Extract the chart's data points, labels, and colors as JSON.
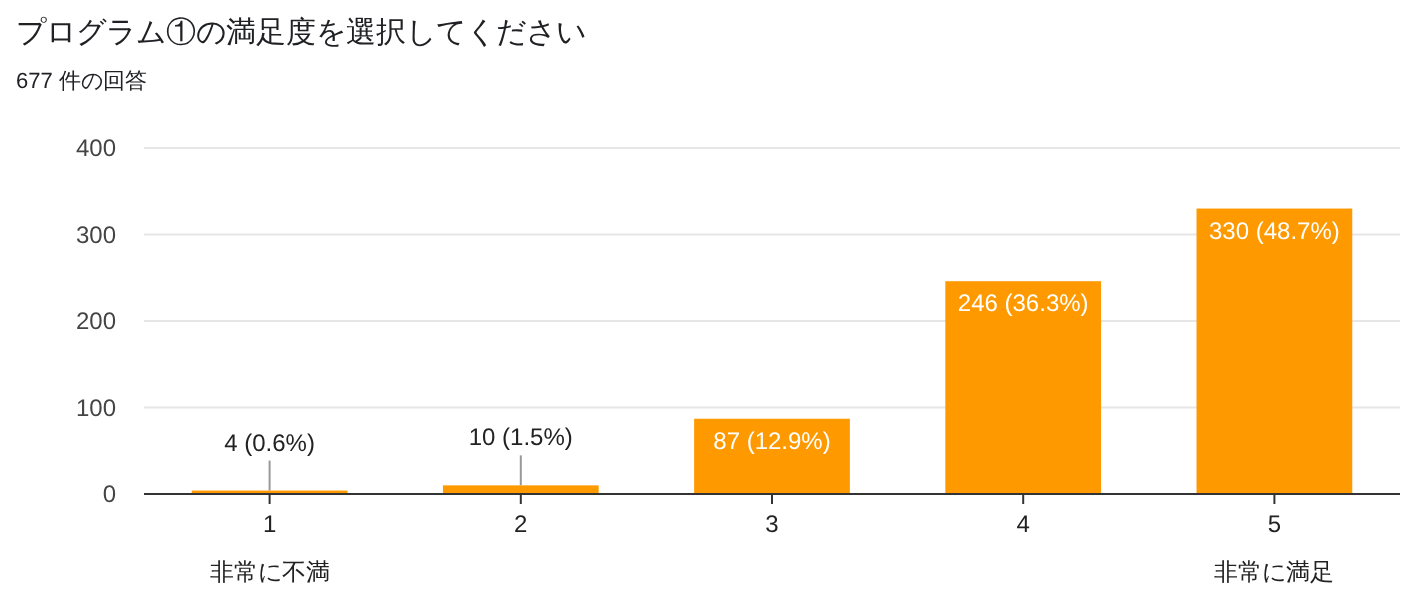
{
  "chart_data": {
    "type": "bar",
    "title": "プログラム①の満足度を選択してください",
    "subtitle": "677 件の回答",
    "categories": [
      "1",
      "2",
      "3",
      "4",
      "5"
    ],
    "values": [
      4,
      10,
      87,
      246,
      330
    ],
    "value_labels": [
      "4 (0.6%)",
      "10 (1.5%)",
      "87 (12.9%)",
      "246 (36.3%)",
      "330 (48.7%)"
    ],
    "color": "#ff9900",
    "ylim": [
      0,
      400
    ],
    "yticks": [
      0,
      100,
      200,
      300,
      400
    ],
    "grid": "y",
    "annotations": [
      "非常に不満",
      "非常に満足"
    ]
  }
}
